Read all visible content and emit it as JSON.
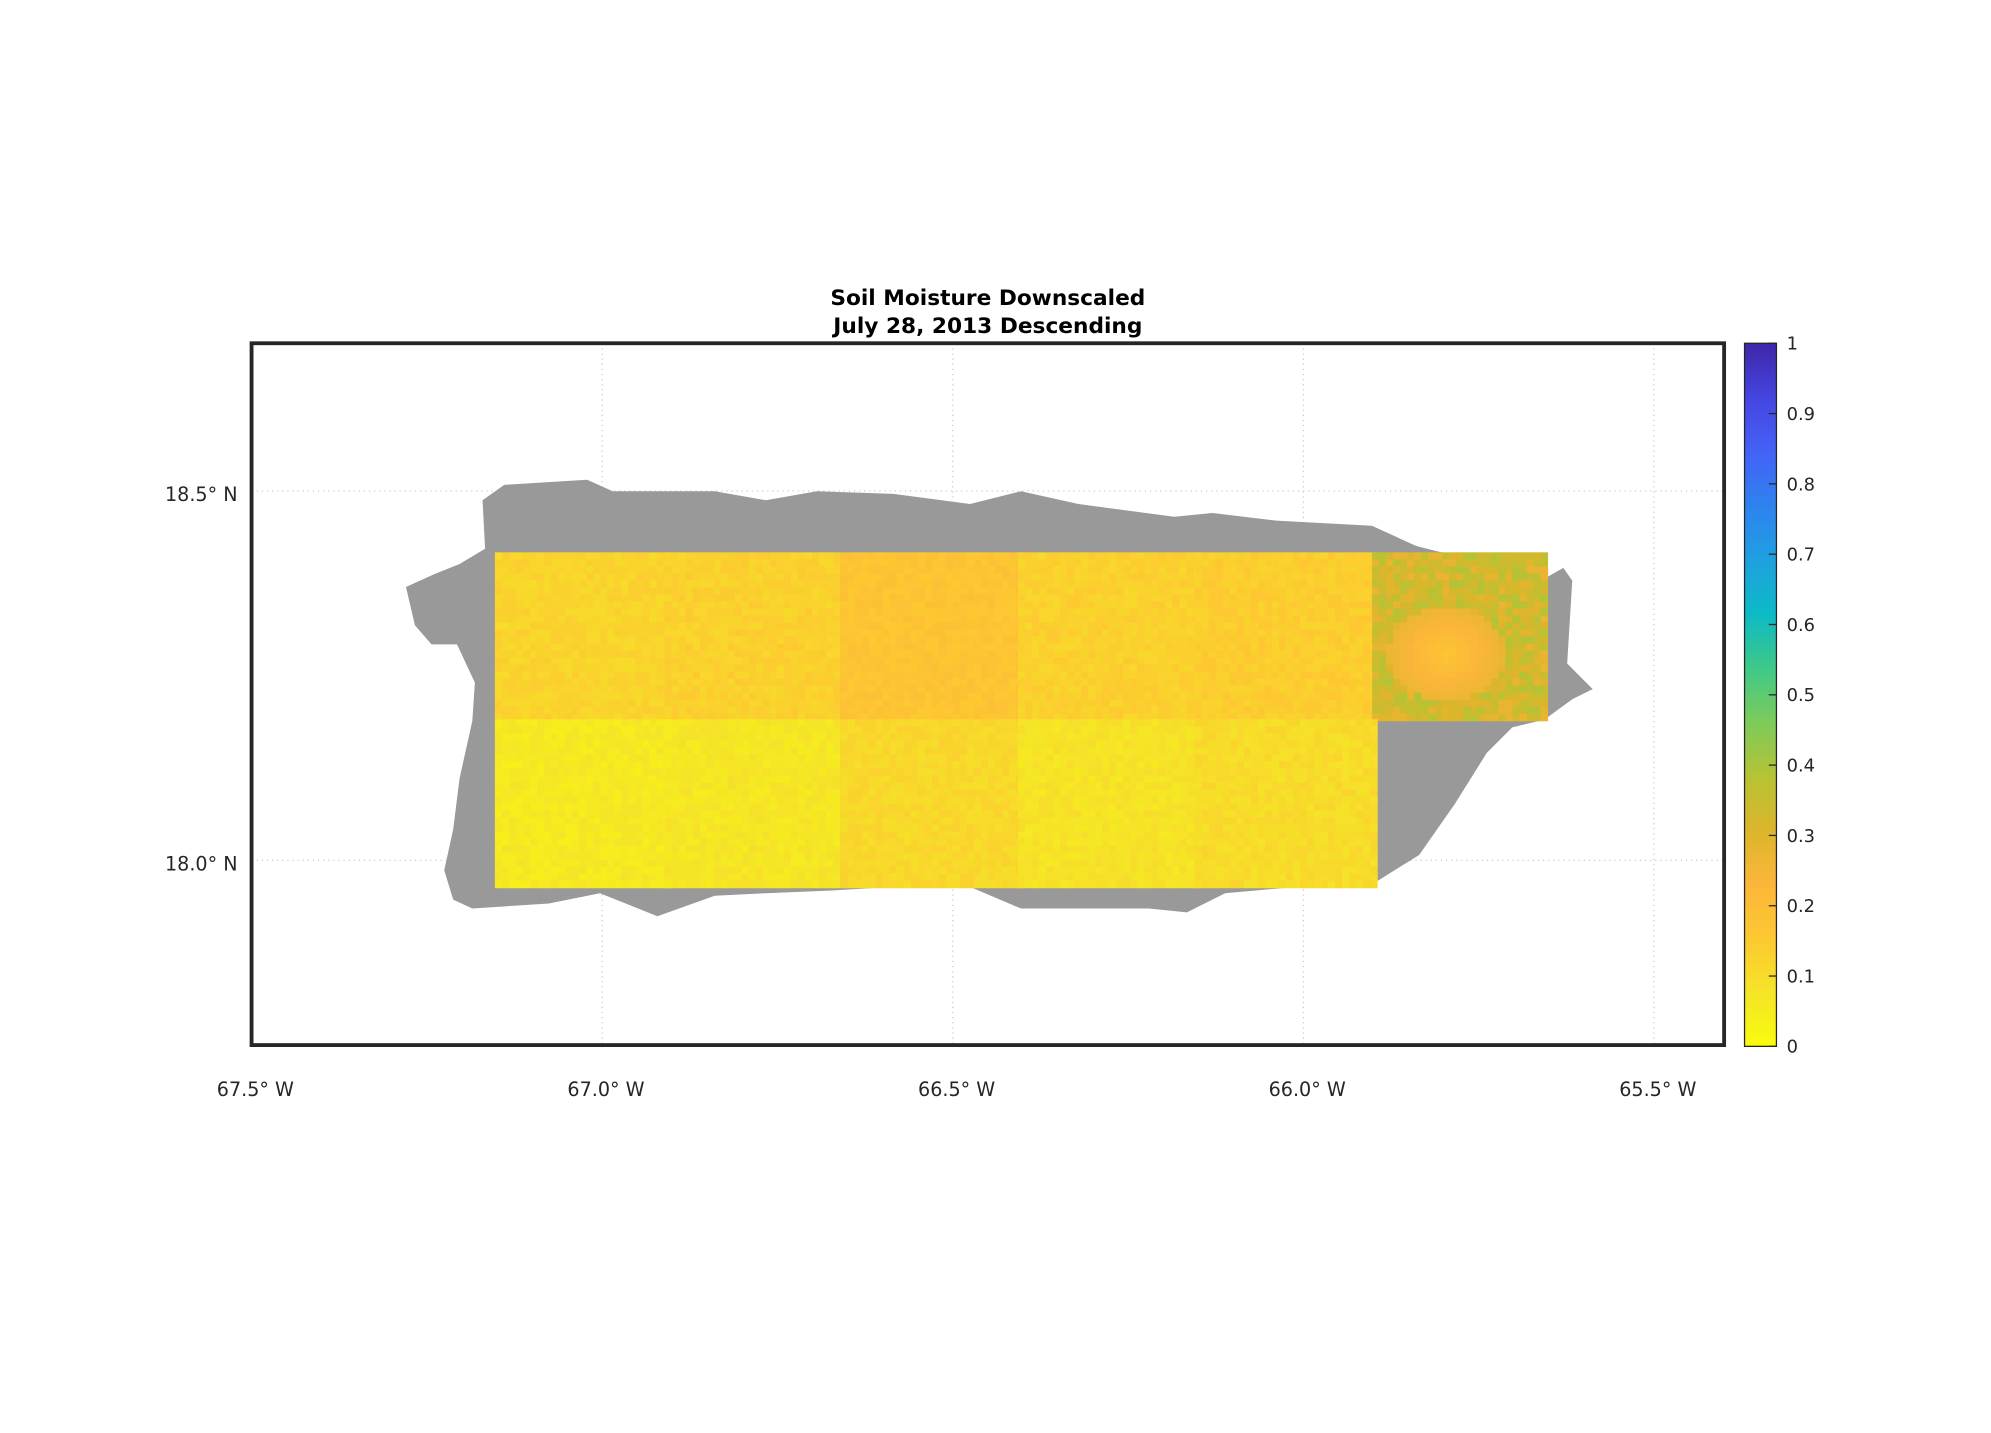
{
  "chart_data": {
    "type": "heatmap",
    "title": [
      "Soil Moisture Downscaled",
      "July 28, 2013 Descending"
    ],
    "xlabel": "",
    "ylabel": "",
    "xlim": [
      -67.5,
      -65.4
    ],
    "ylim": [
      17.75,
      18.7
    ],
    "x_ticks": [
      {
        "value": -67.5,
        "label": "67.5° W"
      },
      {
        "value": -67.0,
        "label": "67.0° W"
      },
      {
        "value": -66.5,
        "label": "66.5° W"
      },
      {
        "value": -66.0,
        "label": "66.0° W"
      },
      {
        "value": -65.5,
        "label": "65.5° W"
      }
    ],
    "y_ticks": [
      {
        "value": 18.5,
        "label": "18.5° N"
      },
      {
        "value": 18.0,
        "label": "18.0° N"
      }
    ],
    "grid": true,
    "no_data_color": "#999999",
    "colorbar": {
      "range": [
        0,
        1
      ],
      "ticks": [
        "0",
        "0.1",
        "0.2",
        "0.3",
        "0.4",
        "0.5",
        "0.6",
        "0.7",
        "0.8",
        "0.9",
        "1"
      ],
      "placement": "right",
      "colormap": [
        "#f9fb0e",
        "#f5e427",
        "#fdc831",
        "#fbb63a",
        "#dcb52b",
        "#b5c334",
        "#7ccb5b",
        "#3ec988",
        "#0cbac6",
        "#1fa0e0",
        "#2e82ef",
        "#4462f6",
        "#4545e0",
        "#3e26a8"
      ]
    },
    "tiles": [
      {
        "lon": [
          -67.153,
          -66.911
        ],
        "lat": [
          18.191,
          18.417
        ],
        "value": 0.12
      },
      {
        "lon": [
          -66.911,
          -66.66
        ],
        "lat": [
          18.191,
          18.417
        ],
        "value": 0.13
      },
      {
        "lon": [
          -66.66,
          -66.407
        ],
        "lat": [
          18.191,
          18.417
        ],
        "value": 0.17
      },
      {
        "lon": [
          -66.407,
          -66.155
        ],
        "lat": [
          18.191,
          18.417
        ],
        "value": 0.13
      },
      {
        "lon": [
          -66.155,
          -65.902
        ],
        "lat": [
          18.191,
          18.417
        ],
        "value": 0.14
      },
      {
        "lon": [
          -65.902,
          -65.658
        ],
        "lat": [
          18.191,
          18.417
        ],
        "value": 0.36
      },
      {
        "lon": [
          -67.153,
          -66.911
        ],
        "lat": [
          17.969,
          18.191
        ],
        "value": 0.06
      },
      {
        "lon": [
          -66.911,
          -66.66
        ],
        "lat": [
          17.969,
          18.191
        ],
        "value": 0.07
      },
      {
        "lon": [
          -66.66,
          -66.407
        ],
        "lat": [
          17.969,
          18.191
        ],
        "value": 0.11
      },
      {
        "lon": [
          -66.407,
          -66.155
        ],
        "lat": [
          17.969,
          18.191
        ],
        "value": 0.08
      },
      {
        "lon": [
          -66.155,
          -65.902
        ],
        "lat": [
          17.969,
          18.191
        ],
        "value": 0.1
      }
    ]
  }
}
